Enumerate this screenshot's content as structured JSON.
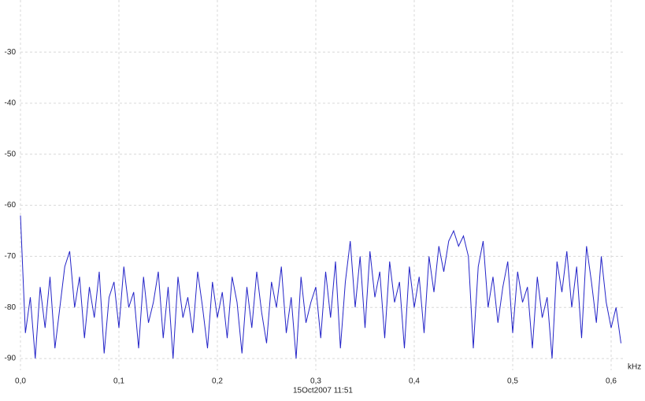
{
  "chart_data": {
    "type": "line",
    "xlabel": "kHz",
    "footer": "15Oct2007  11:51",
    "xlim": [
      0,
      0.6136
    ],
    "ylim": [
      -92.3,
      -19.8
    ],
    "xticks": [
      {
        "value": 0,
        "label": "0,0"
      },
      {
        "value": 0.1,
        "label": "0,1"
      },
      {
        "value": 0.2,
        "label": "0,2"
      },
      {
        "value": 0.3,
        "label": "0,3"
      },
      {
        "value": 0.4,
        "label": "0,4"
      },
      {
        "value": 0.5,
        "label": "0,5"
      },
      {
        "value": 0.6,
        "label": "0,6"
      }
    ],
    "yticks": [
      -30,
      -40,
      -50,
      -60,
      -70,
      -80,
      -90
    ],
    "grid": true,
    "x": [
      0,
      0.005,
      0.01,
      0.015,
      0.02,
      0.025,
      0.03,
      0.035,
      0.04,
      0.045,
      0.05,
      0.055,
      0.06,
      0.065,
      0.07,
      0.075,
      0.08,
      0.085,
      0.09,
      0.095,
      0.1,
      0.105,
      0.11,
      0.115,
      0.12,
      0.125,
      0.13,
      0.135,
      0.14,
      0.145,
      0.15,
      0.155,
      0.16,
      0.165,
      0.17,
      0.175,
      0.18,
      0.185,
      0.19,
      0.195,
      0.2,
      0.205,
      0.21,
      0.215,
      0.22,
      0.225,
      0.23,
      0.235,
      0.24,
      0.245,
      0.25,
      0.255,
      0.26,
      0.265,
      0.27,
      0.275,
      0.28,
      0.285,
      0.29,
      0.295,
      0.3,
      0.305,
      0.31,
      0.315,
      0.32,
      0.325,
      0.33,
      0.335,
      0.34,
      0.345,
      0.35,
      0.355,
      0.36,
      0.365,
      0.37,
      0.375,
      0.38,
      0.385,
      0.39,
      0.395,
      0.4,
      0.405,
      0.41,
      0.415,
      0.42,
      0.425,
      0.43,
      0.435,
      0.44,
      0.445,
      0.45,
      0.455,
      0.46,
      0.465,
      0.47,
      0.475,
      0.48,
      0.485,
      0.49,
      0.495,
      0.5,
      0.505,
      0.51,
      0.515,
      0.52,
      0.525,
      0.53,
      0.535,
      0.54,
      0.545,
      0.55,
      0.555,
      0.56,
      0.565,
      0.57,
      0.575,
      0.58,
      0.585,
      0.59,
      0.595,
      0.6,
      0.605,
      0.61
    ],
    "series": [
      {
        "color": "#2424c8",
        "values": [
          -62,
          -85,
          -78,
          -90,
          -76,
          -84,
          -74,
          -88,
          -80,
          -72,
          -69,
          -80,
          -74,
          -86,
          -76,
          -82,
          -73,
          -89,
          -78,
          -75,
          -84,
          -72,
          -80,
          -77,
          -88,
          -74,
          -83,
          -79,
          -73,
          -86,
          -76,
          -90,
          -74,
          -82,
          -78,
          -85,
          -73,
          -80,
          -88,
          -75,
          -82,
          -77,
          -86,
          -74,
          -79,
          -89,
          -76,
          -84,
          -73,
          -81,
          -87,
          -75,
          -80,
          -72,
          -85,
          -78,
          -90,
          -74,
          -83,
          -79,
          -76,
          -86,
          -73,
          -82,
          -71,
          -88,
          -75,
          -67,
          -80,
          -70,
          -84,
          -69,
          -78,
          -73,
          -86,
          -71,
          -79,
          -75,
          -88,
          -72,
          -80,
          -74,
          -85,
          -70,
          -77,
          -68,
          -73,
          -67,
          -65,
          -68,
          -66,
          -70,
          -88,
          -72,
          -67,
          -80,
          -74,
          -83,
          -76,
          -71,
          -85,
          -73,
          -79,
          -76,
          -88,
          -74,
          -82,
          -78,
          -90,
          -71,
          -77,
          -69,
          -80,
          -72,
          -86,
          -68,
          -75,
          -83,
          -70,
          -79,
          -84,
          -80,
          -87
        ]
      }
    ]
  }
}
